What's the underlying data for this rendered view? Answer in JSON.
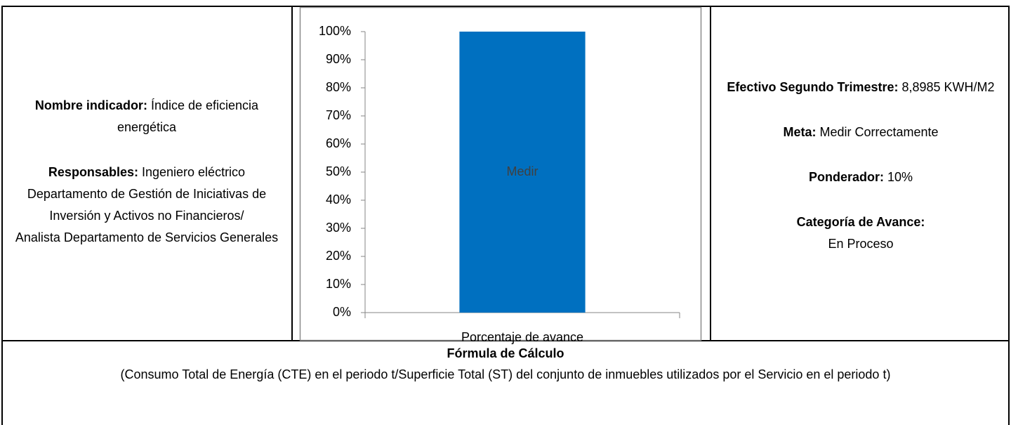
{
  "left": {
    "name_label": "Nombre indicador:",
    "name_text": "Índice de eficiencia energética",
    "resp_label": "Responsables:",
    "resp_text": "Ingeniero eléctrico Departamento de Gestión de Iniciativas de Inversión y Activos no Financieros/",
    "resp_text_2": "Analista Departamento de Servicios Generales"
  },
  "chart_data": {
    "type": "bar",
    "categories": [
      "Porcentaje de avance"
    ],
    "values": [
      100
    ],
    "value_labels": [
      "Medir"
    ],
    "color": "#0070c0",
    "ylim": [
      0,
      100
    ],
    "yticks": [
      {
        "value": 0,
        "label": "0%"
      },
      {
        "value": 10,
        "label": "10%"
      },
      {
        "value": 20,
        "label": "20%"
      },
      {
        "value": 30,
        "label": "30%"
      },
      {
        "value": 40,
        "label": "40%"
      },
      {
        "value": 50,
        "label": "50%"
      },
      {
        "value": 60,
        "label": "60%"
      },
      {
        "value": 70,
        "label": "70%"
      },
      {
        "value": 80,
        "label": "80%"
      },
      {
        "value": 90,
        "label": "90%"
      },
      {
        "value": 100,
        "label": "100%"
      }
    ],
    "grid": false
  },
  "right": {
    "efectivo_label": "Efectivo Segundo Trimestre:",
    "efectivo_text": "8,8985 KWH/M2",
    "meta_label": "Meta:",
    "meta_text": "Medir Correctamente",
    "ponderador_label": "Ponderador:",
    "ponderador_text": "10%",
    "categoria_label": "Categoría de Avance:",
    "categoria_text": "En Proceso"
  },
  "formula": {
    "title": "Fórmula de Cálculo",
    "text": "(Consumo Total de Energía (CTE) en el periodo t/Superficie Total (ST) del conjunto de inmuebles utilizados por el Servicio en el periodo t)"
  }
}
